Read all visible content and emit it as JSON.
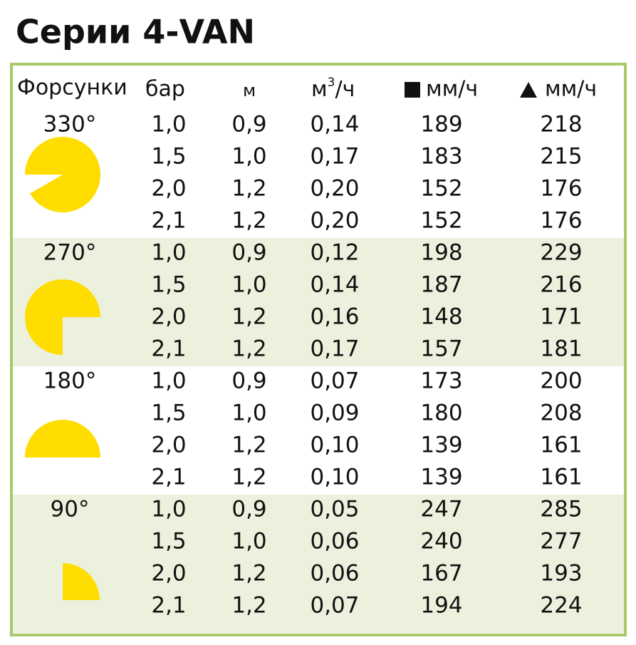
{
  "title": "Серии 4-VAN",
  "header": {
    "nozzles": "Форсунки",
    "pressure": "бар",
    "radius": "м",
    "flow": {
      "base": "м",
      "sup": "3",
      "tail": "/ч"
    },
    "square_rate": "мм/ч",
    "triangle_rate": "мм/ч"
  },
  "groups": [
    {
      "angle": "330°",
      "rows": [
        [
          "1,0",
          "0,9",
          "0,14",
          "189",
          "218"
        ],
        [
          "1,5",
          "1,0",
          "0,17",
          "183",
          "215"
        ],
        [
          "2,0",
          "1,2",
          "0,20",
          "152",
          "176"
        ],
        [
          "2,1",
          "1,2",
          "0,20",
          "152",
          "176"
        ]
      ]
    },
    {
      "angle": "270°",
      "rows": [
        [
          "1,0",
          "0,9",
          "0,12",
          "198",
          "229"
        ],
        [
          "1,5",
          "1,0",
          "0,14",
          "187",
          "216"
        ],
        [
          "2,0",
          "1,2",
          "0,16",
          "148",
          "171"
        ],
        [
          "2,1",
          "1,2",
          "0,17",
          "157",
          "181"
        ]
      ]
    },
    {
      "angle": "180°",
      "rows": [
        [
          "1,0",
          "0,9",
          "0,07",
          "173",
          "200"
        ],
        [
          "1,5",
          "1,0",
          "0,09",
          "180",
          "208"
        ],
        [
          "2,0",
          "1,2",
          "0,10",
          "139",
          "161"
        ],
        [
          "2,1",
          "1,2",
          "0,10",
          "139",
          "161"
        ]
      ]
    },
    {
      "angle": "90°",
      "rows": [
        [
          "1,0",
          "0,9",
          "0,05",
          "247",
          "285"
        ],
        [
          "1,5",
          "1,0",
          "0,06",
          "240",
          "277"
        ],
        [
          "2,0",
          "1,2",
          "0,06",
          "167",
          "193"
        ],
        [
          "2,1",
          "1,2",
          "0,07",
          "194",
          "224"
        ]
      ]
    }
  ]
}
